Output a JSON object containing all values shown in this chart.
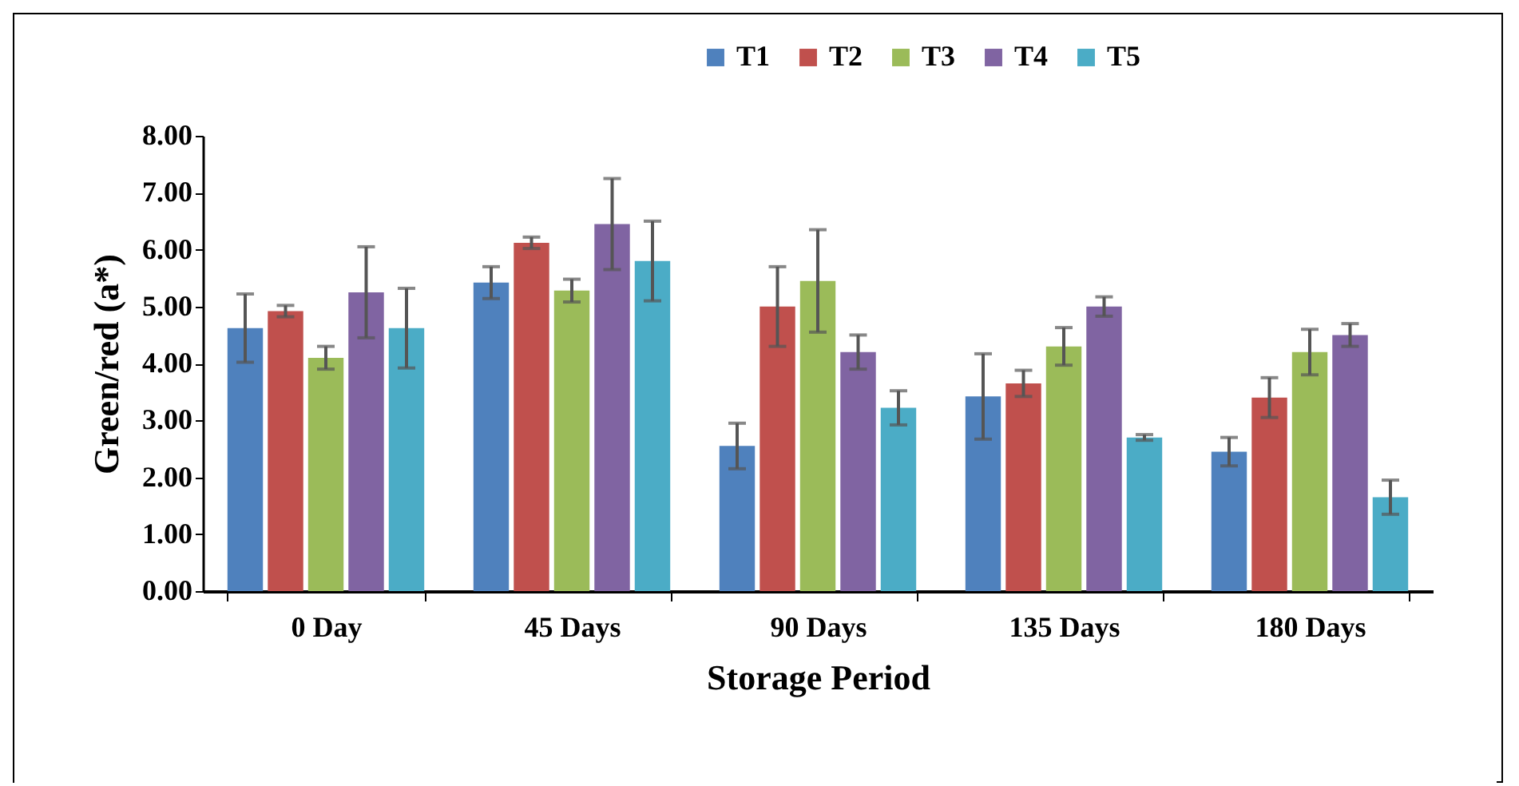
{
  "chart_data": {
    "type": "bar",
    "xlabel": "Storage Period",
    "ylabel": "Green/red (a*)",
    "categories": [
      "0 Day",
      "45 Days",
      "90 Days",
      "135 Days",
      "180 Days"
    ],
    "series": [
      {
        "name": "T1",
        "color": "#4f81bd",
        "values": [
          4.62,
          5.42,
          2.55,
          3.42,
          2.45
        ],
        "errors": [
          0.6,
          0.28,
          0.4,
          0.75,
          0.25
        ]
      },
      {
        "name": "T2",
        "color": "#c0504d",
        "values": [
          4.92,
          6.12,
          5.0,
          3.65,
          3.4
        ],
        "errors": [
          0.1,
          0.1,
          0.7,
          0.23,
          0.35
        ]
      },
      {
        "name": "T3",
        "color": "#9bbb59",
        "values": [
          4.1,
          5.28,
          5.45,
          4.3,
          4.2
        ],
        "errors": [
          0.2,
          0.2,
          0.9,
          0.33,
          0.4
        ]
      },
      {
        "name": "T4",
        "color": "#8064a2",
        "values": [
          5.25,
          6.45,
          4.2,
          5.0,
          4.5
        ],
        "errors": [
          0.8,
          0.8,
          0.3,
          0.17,
          0.2
        ]
      },
      {
        "name": "T5",
        "color": "#4bacc6",
        "values": [
          4.62,
          5.8,
          3.22,
          2.7,
          1.65
        ],
        "errors": [
          0.7,
          0.7,
          0.3,
          0.05,
          0.3
        ]
      }
    ],
    "ylim": [
      0,
      8
    ],
    "yticks": [
      {
        "value": 0,
        "label": "0.00"
      },
      {
        "value": 1,
        "label": "1.00"
      },
      {
        "value": 2,
        "label": "2.00"
      },
      {
        "value": 3,
        "label": "3.00"
      },
      {
        "value": 4,
        "label": "4.00"
      },
      {
        "value": 5,
        "label": "5.00"
      },
      {
        "value": 6,
        "label": "6.00"
      },
      {
        "value": 7,
        "label": "7.00"
      },
      {
        "value": 8,
        "label": "8.00"
      }
    ],
    "legend": "top",
    "grid": false
  }
}
